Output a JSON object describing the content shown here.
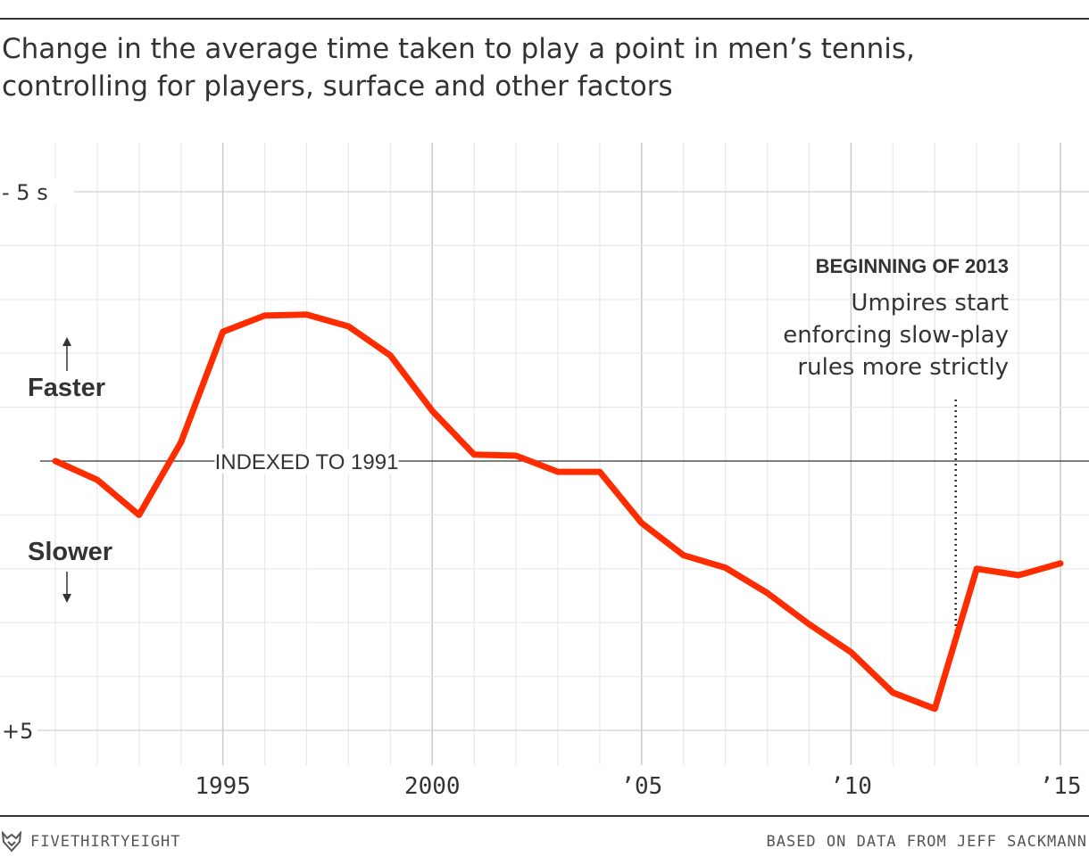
{
  "title_lines": [
    "Change in the average time taken to play a point in men’s tennis,",
    "controlling for players, surface and other factors"
  ],
  "colors": {
    "line": "#ff2c00",
    "grid": "#e8e8e8",
    "major_grid": "#cccccc",
    "text": "#333333"
  },
  "chart_data": {
    "type": "line",
    "title": "Change in the average time taken to play a point in men’s tennis, controlling for players, surface and other factors",
    "xlabel": "",
    "ylabel": "",
    "xlim": [
      1991,
      2015
    ],
    "ylim": [
      -5,
      5
    ],
    "y_inverted": true,
    "x_ticks": [
      {
        "value": 1995,
        "label": "1995"
      },
      {
        "value": 2000,
        "label": "2000"
      },
      {
        "value": 2005,
        "label": "’05"
      },
      {
        "value": 2010,
        "label": "’10"
      },
      {
        "value": 2015,
        "label": "’15"
      }
    ],
    "y_ticks": [
      {
        "value": -5,
        "label": "- 5 s"
      },
      {
        "value": 5,
        "label": "+5"
      }
    ],
    "grid": true,
    "x": [
      1991,
      1992,
      1993,
      1994,
      1995,
      1996,
      1997,
      1998,
      1999,
      2000,
      2001,
      2002,
      2003,
      2004,
      2005,
      2006,
      2007,
      2008,
      2009,
      2010,
      2011,
      2012,
      2013,
      2014,
      2015
    ],
    "series": [
      {
        "values": [
          0.0,
          0.35,
          1.0,
          -0.35,
          -2.4,
          -2.7,
          -2.72,
          -2.5,
          -1.96,
          -0.93,
          -0.12,
          -0.1,
          0.2,
          0.2,
          1.15,
          1.75,
          1.98,
          2.45,
          3.03,
          3.55,
          4.3,
          4.6,
          2.0,
          2.12,
          1.9
        ]
      }
    ],
    "reference_line": {
      "y": 0,
      "label": "INDEXED TO 1991"
    },
    "direction_labels": {
      "up": "Faster",
      "down": "Slower"
    },
    "annotation": {
      "x": 2012.5,
      "heading": "BEGINNING OF 2013",
      "lines": [
        "Umpires start",
        "enforcing slow-play",
        "rules more strictly"
      ]
    }
  },
  "footer": {
    "brand": "FIVETHIRTYEIGHT",
    "source": "BASED ON DATA FROM JEFF SACKMANN"
  }
}
